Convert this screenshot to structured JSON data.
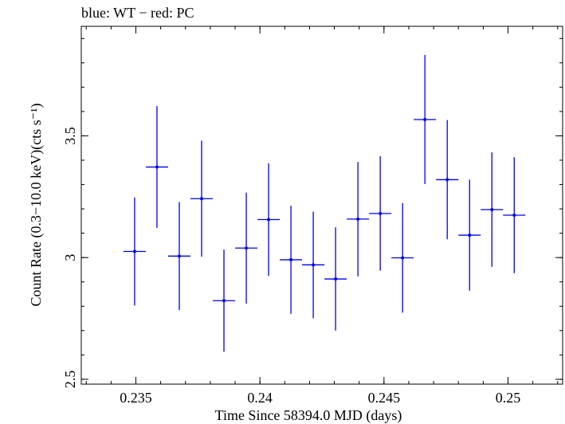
{
  "chart_data": {
    "type": "scatter",
    "title": "blue: WT − red: PC",
    "xlabel": "Time Since 58394.0 MJD (days)",
    "ylabel": "Count Rate (0.3−10.0 keV)(cts s⁻¹)",
    "xlim": [
      0.2328,
      0.2522
    ],
    "ylim": [
      2.48,
      3.95
    ],
    "x_ticks": [
      {
        "value": 0.235,
        "label": "0.235"
      },
      {
        "value": 0.24,
        "label": "0.24"
      },
      {
        "value": 0.245,
        "label": "0.245"
      },
      {
        "value": 0.25,
        "label": "0.25"
      }
    ],
    "y_ticks": [
      {
        "value": 2.5,
        "label": "2.5"
      },
      {
        "value": 3,
        "label": "3"
      },
      {
        "value": 3.5,
        "label": "3.5"
      }
    ],
    "grid": false,
    "series": [
      {
        "color": "#0000ee",
        "points": [
          {
            "x": 0.23495,
            "xerr": 0.00045,
            "y": 3.025,
            "yerr": 0.222
          },
          {
            "x": 0.23585,
            "xerr": 0.00045,
            "y": 3.372,
            "yerr": 0.25
          },
          {
            "x": 0.23675,
            "xerr": 0.00045,
            "y": 3.006,
            "yerr": 0.222
          },
          {
            "x": 0.23765,
            "xerr": 0.00045,
            "y": 3.242,
            "yerr": 0.238
          },
          {
            "x": 0.23855,
            "xerr": 0.00045,
            "y": 2.823,
            "yerr": 0.21
          },
          {
            "x": 0.23945,
            "xerr": 0.00045,
            "y": 3.039,
            "yerr": 0.228
          },
          {
            "x": 0.24035,
            "xerr": 0.00045,
            "y": 3.156,
            "yerr": 0.231
          },
          {
            "x": 0.24125,
            "xerr": 0.00045,
            "y": 2.991,
            "yerr": 0.222
          },
          {
            "x": 0.24215,
            "xerr": 0.00045,
            "y": 2.97,
            "yerr": 0.219
          },
          {
            "x": 0.24305,
            "xerr": 0.00045,
            "y": 2.912,
            "yerr": 0.212
          },
          {
            "x": 0.24395,
            "xerr": 0.00045,
            "y": 3.158,
            "yerr": 0.235
          },
          {
            "x": 0.24485,
            "xerr": 0.00045,
            "y": 3.181,
            "yerr": 0.235
          },
          {
            "x": 0.24575,
            "xerr": 0.00045,
            "y": 2.999,
            "yerr": 0.225
          },
          {
            "x": 0.24665,
            "xerr": 0.00045,
            "y": 3.567,
            "yerr": 0.265
          },
          {
            "x": 0.24755,
            "xerr": 0.00045,
            "y": 3.32,
            "yerr": 0.245
          },
          {
            "x": 0.24845,
            "xerr": 0.00045,
            "y": 3.092,
            "yerr": 0.228
          },
          {
            "x": 0.24935,
            "xerr": 0.00045,
            "y": 3.197,
            "yerr": 0.235
          },
          {
            "x": 0.25025,
            "xerr": 0.00045,
            "y": 3.174,
            "yerr": 0.238
          }
        ]
      }
    ]
  }
}
